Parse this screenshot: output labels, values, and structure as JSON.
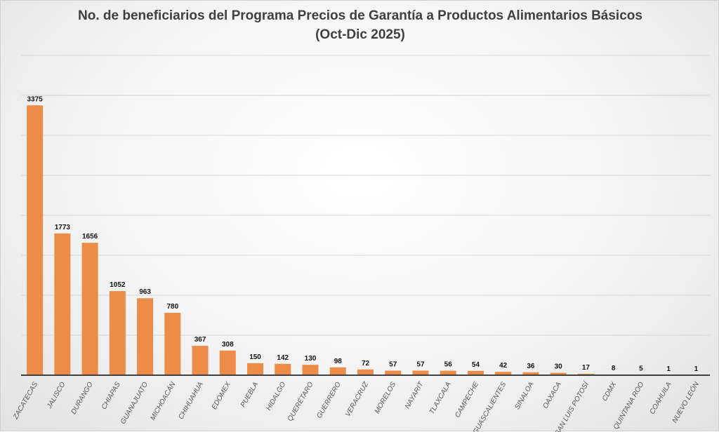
{
  "chart_data": {
    "type": "bar",
    "title": "No. de beneficiarios del Programa Precios de Garantía a Productos Alimentarios Básicos",
    "subtitle": "(Oct-Dic 2025)",
    "xlabel": "",
    "ylabel": "",
    "ylim": [
      0,
      4000
    ],
    "grid": true,
    "gridStep": 500,
    "barColor": "#ED8C48",
    "categories": [
      "ZACATECAS",
      "JALISCO",
      "DURANGO",
      "CHIAPAS",
      "GUANAJUATO",
      "MICHOACÁN",
      "CHIHUAHUA",
      "EDOMEX",
      "PUEBLA",
      "HIDALGO",
      "QUERÉTARO",
      "GUERRERO",
      "VERACRUZ",
      "MORELOS",
      "NAYARIT",
      "TLAXCALA",
      "CAMPECHE",
      "AGUASCALIENTES",
      "SINALOA",
      "OAXACA",
      "SAN LUIS POTOSÍ",
      "CDMX",
      "QUINTANA ROO",
      "COAHUILA",
      "NUEVO LEÓN"
    ],
    "values": [
      3375,
      1773,
      1656,
      1052,
      963,
      780,
      367,
      308,
      150,
      142,
      130,
      98,
      72,
      57,
      57,
      56,
      54,
      42,
      36,
      30,
      17,
      8,
      5,
      1,
      1
    ]
  }
}
